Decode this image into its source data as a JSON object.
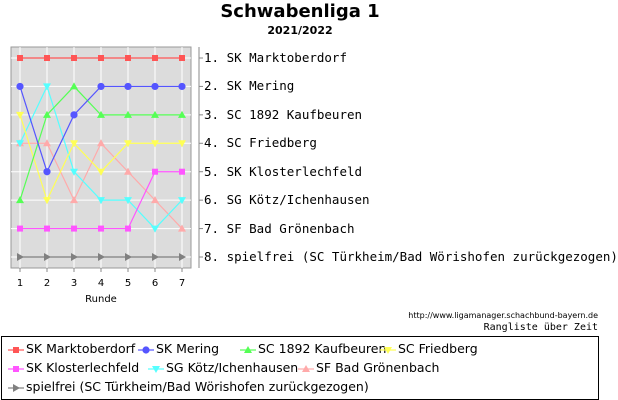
{
  "title": "Schwabenliga 1",
  "subtitle": "2021/2022",
  "source_url": "http://www.ligamanager.schachbund-bayern.de",
  "caption": "Rangliste über Zeit",
  "ranking": [
    {
      "label": "1.  SK Marktoberdorf"
    },
    {
      "label": "2.  SK Mering"
    },
    {
      "label": "3.  SC 1892 Kaufbeuren"
    },
    {
      "label": "4.  SC Friedberg"
    },
    {
      "label": "5.  SK Klosterlechfeld"
    },
    {
      "label": "6.  SG Kötz/Ichenhausen"
    },
    {
      "label": "7.  SF Bad Grönenbach"
    },
    {
      "label": "8.  spielfrei (SC Türkheim/Bad Wörishofen zurückgezogen)"
    }
  ],
  "chart_data": {
    "type": "line",
    "xlabel": "Runde",
    "ylabel": "",
    "x": [
      1,
      2,
      3,
      4,
      5,
      6,
      7
    ],
    "ylim": [
      8,
      1
    ],
    "y_inverted": true,
    "grid": true,
    "legend_position": "bottom",
    "series": [
      {
        "name": "SK Marktoberdorf",
        "color": "#ff5555",
        "marker": "square",
        "values": [
          1,
          1,
          1,
          1,
          1,
          1,
          1
        ]
      },
      {
        "name": "SK Mering",
        "color": "#5555ff",
        "marker": "circle",
        "values": [
          2,
          5,
          3,
          2,
          2,
          2,
          2
        ]
      },
      {
        "name": "SC 1892 Kaufbeuren",
        "color": "#55ff55",
        "marker": "triangle-up",
        "values": [
          6,
          3,
          2,
          3,
          3,
          3,
          3
        ]
      },
      {
        "name": "SC Friedberg",
        "color": "#ffff55",
        "marker": "triangle-down",
        "values": [
          3,
          6,
          4,
          5,
          4,
          4,
          4
        ]
      },
      {
        "name": "SK Klosterlechfeld",
        "color": "#ff55ff",
        "marker": "square",
        "values": [
          7,
          7,
          7,
          7,
          7,
          5,
          5
        ]
      },
      {
        "name": "SG Kötz/Ichenhausen",
        "color": "#55ffff",
        "marker": "triangle-down",
        "values": [
          4,
          2,
          5,
          6,
          6,
          7,
          6
        ]
      },
      {
        "name": "SF Bad Grönenbach",
        "color": "#ffaaaa",
        "marker": "triangle-up",
        "values": [
          4,
          4,
          6,
          4,
          5,
          6,
          7
        ]
      },
      {
        "name": "spielfrei (SC Türkheim/Bad Wörishofen zurückgezogen)",
        "color": "#808080",
        "marker": "triangle-right",
        "values": [
          8,
          8,
          8,
          8,
          8,
          8,
          8
        ]
      }
    ]
  }
}
